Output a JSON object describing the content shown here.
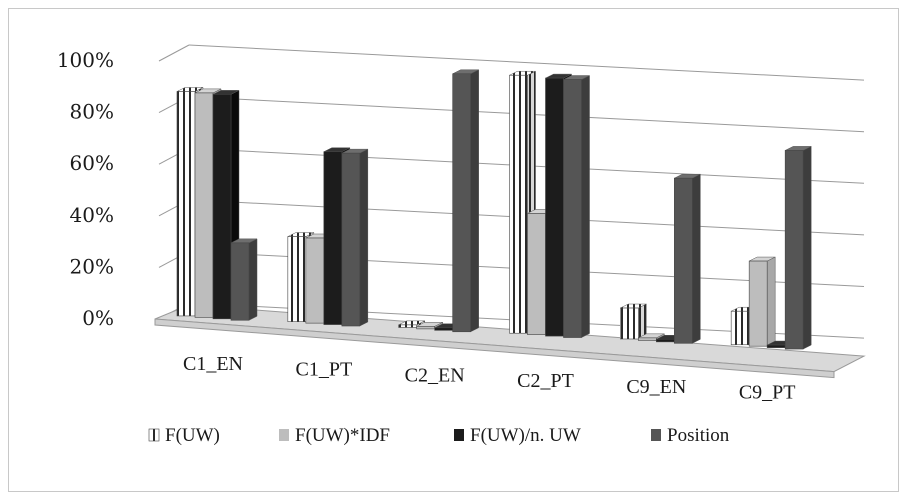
{
  "chart_data": {
    "type": "bar",
    "title": "",
    "xlabel": "",
    "ylabel": "",
    "ylim": [
      0,
      100
    ],
    "y_ticks": [
      "0%",
      "20%",
      "40%",
      "60%",
      "80%",
      "100%"
    ],
    "categories": [
      "C1_EN",
      "C1_PT",
      "C2_EN",
      "C2_PT",
      "C9_EN",
      "C9_PT"
    ],
    "series": [
      {
        "name": "F(UW)",
        "values": [
          87,
          33,
          1,
          100,
          12,
          13
        ],
        "color": "#ffffff",
        "pattern": "vertical-stripes"
      },
      {
        "name": "F(UW)*IDF",
        "values": [
          87,
          33,
          1,
          47,
          1,
          33
        ],
        "color": "#bdbdbd"
      },
      {
        "name": "F(UW)/n. UW",
        "values": [
          87,
          67,
          1,
          100,
          1,
          1
        ],
        "color": "#1c1c1c"
      },
      {
        "name": "Position",
        "values": [
          30,
          67,
          100,
          100,
          64,
          77
        ],
        "color": "#555555"
      }
    ],
    "legend_position": "bottom",
    "grid": true,
    "style": "3d-clustered-column"
  }
}
